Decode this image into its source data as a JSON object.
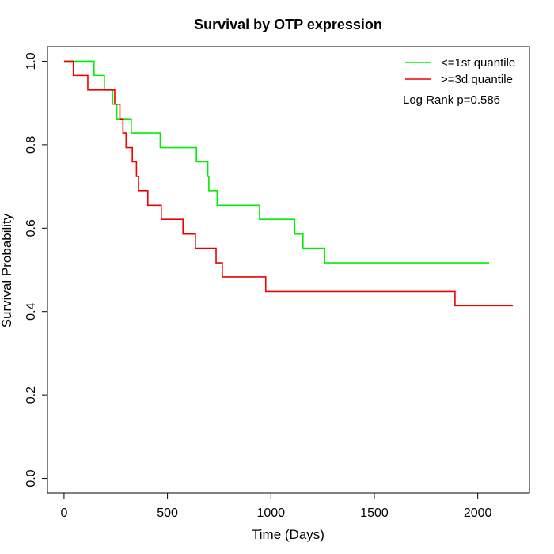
{
  "chart_data": {
    "type": "line",
    "title": "Survival by OTP expression",
    "xlabel": "Time (Days)",
    "ylabel": "Survival Probability",
    "xlim": [
      -80,
      2250
    ],
    "ylim": [
      -0.035,
      1.035
    ],
    "xticks": [
      0,
      500,
      1000,
      1500,
      2000
    ],
    "yticks": [
      0.0,
      0.2,
      0.4,
      0.6,
      0.8,
      1.0
    ],
    "xtick_labels": [
      "0",
      "500",
      "1000",
      "1500",
      "2000"
    ],
    "ytick_labels": [
      "0.0",
      "0.2",
      "0.4",
      "0.6",
      "0.8",
      "1.0"
    ],
    "grid": false,
    "legend_position": "top-right",
    "annotation": "Log Rank p=0.586",
    "series": [
      {
        "name": "<=1st quantile",
        "color": "#00ee00",
        "step": true,
        "x": [
          0,
          145,
          195,
          235,
          255,
          325,
          465,
          640,
          695,
          700,
          740,
          945,
          1115,
          1155,
          1260,
          2055
        ],
        "y": [
          1.0,
          0.966,
          0.931,
          0.897,
          0.862,
          0.828,
          0.793,
          0.759,
          0.724,
          0.69,
          0.655,
          0.621,
          0.586,
          0.552,
          0.517,
          0.517
        ]
      },
      {
        "name": ">=3d quantile",
        "color": "#ee0000",
        "step": true,
        "x": [
          0,
          45,
          115,
          245,
          270,
          285,
          300,
          330,
          350,
          360,
          405,
          470,
          575,
          635,
          735,
          765,
          975,
          1890,
          2170
        ],
        "y": [
          1.0,
          0.966,
          0.931,
          0.897,
          0.862,
          0.828,
          0.793,
          0.759,
          0.724,
          0.69,
          0.655,
          0.621,
          0.586,
          0.552,
          0.517,
          0.483,
          0.448,
          0.414,
          0.414
        ]
      }
    ]
  }
}
